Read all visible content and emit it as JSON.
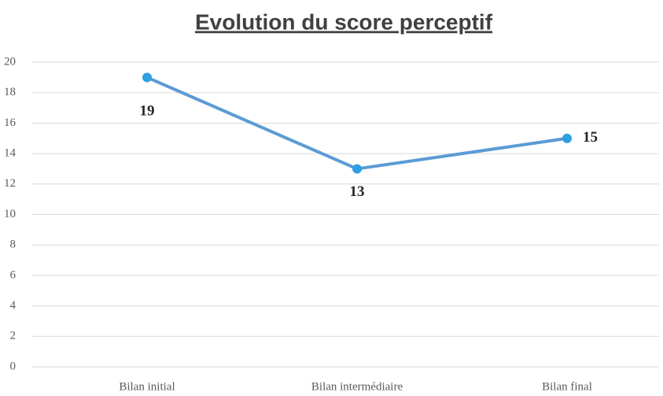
{
  "chart_data": {
    "type": "line",
    "title": "Evolution du score perceptif",
    "categories": [
      "Bilan initial",
      "Bilan intermédiaire",
      "Bilan final"
    ],
    "values": [
      19,
      13,
      15
    ],
    "color": "#5b9bd5",
    "marker_color": "#2e9fe0",
    "ylim": [
      0,
      20
    ],
    "yticks": [
      0,
      2,
      4,
      6,
      8,
      10,
      12,
      14,
      16,
      18,
      20
    ],
    "grid": true
  }
}
